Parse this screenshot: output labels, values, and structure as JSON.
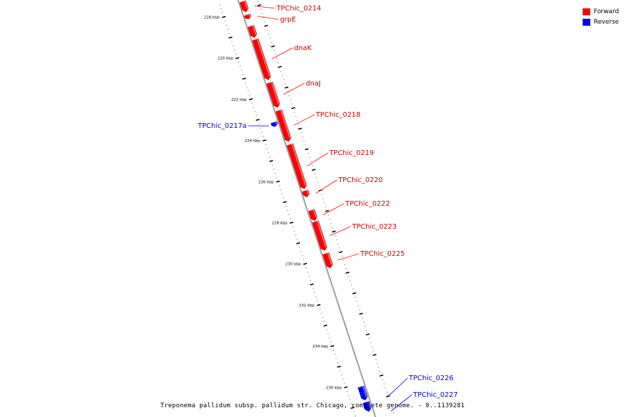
{
  "legend": {
    "forward_label": "Forward",
    "reverse_label": "Reverse",
    "forward_color": "#ff0000",
    "reverse_color": "#0000ff"
  },
  "caption": "Treponema pallidum subsp. pallidum str. Chicago, complete genome. - 0..1139281",
  "diagram": {
    "tick_labels": [
      {
        "kbp": 218,
        "label": "218 kbp"
      },
      {
        "kbp": 220,
        "label": "220 kbp"
      },
      {
        "kbp": 222,
        "label": "222 kbp"
      },
      {
        "kbp": 224,
        "label": "224 kbp"
      },
      {
        "kbp": 226,
        "label": "226 kbp"
      },
      {
        "kbp": 228,
        "label": "228 kbp"
      },
      {
        "kbp": 230,
        "label": "230 kbp"
      },
      {
        "kbp": 232,
        "label": "232 kbp"
      },
      {
        "kbp": 234,
        "label": "234 kbp"
      },
      {
        "kbp": 236,
        "label": "236 kbp"
      }
    ],
    "genes": [
      {
        "name": "TPChic_0214",
        "strand": "forward",
        "start_kbp": 217.6,
        "end_kbp": 218.1
      },
      {
        "name": "grpE",
        "strand": "forward",
        "start_kbp": 218.25,
        "end_kbp": 218.45
      },
      {
        "name": "",
        "strand": "forward",
        "start_kbp": 218.8,
        "end_kbp": 219.35
      },
      {
        "name": "dnaK",
        "strand": "forward",
        "start_kbp": 219.45,
        "end_kbp": 221.4
      },
      {
        "name": "dnaJ",
        "strand": "forward",
        "start_kbp": 221.55,
        "end_kbp": 222.75
      },
      {
        "name": "TPChic_0218",
        "strand": "forward",
        "start_kbp": 222.9,
        "end_kbp": 224.4
      },
      {
        "name": "TPChic_0217a",
        "strand": "reverse",
        "start_kbp": 223.35,
        "end_kbp": 223.55
      },
      {
        "name": "TPChic_0219",
        "strand": "forward",
        "start_kbp": 224.55,
        "end_kbp": 226.7
      },
      {
        "name": "TPChic_0220",
        "strand": "forward",
        "start_kbp": 226.8,
        "end_kbp": 227.1
      },
      {
        "name": "TPChic_0222",
        "strand": "forward",
        "start_kbp": 227.75,
        "end_kbp": 228.25
      },
      {
        "name": "TPChic_0223",
        "strand": "forward",
        "start_kbp": 228.3,
        "end_kbp": 229.7
      },
      {
        "name": "TPChic_0225",
        "strand": "forward",
        "start_kbp": 229.85,
        "end_kbp": 230.55
      },
      {
        "name": "TPChic_0226",
        "strand": "reverse",
        "start_kbp": 236.2,
        "end_kbp": 236.85
      },
      {
        "name": "TPChic_0227",
        "strand": "reverse",
        "start_kbp": 236.95,
        "end_kbp": 237.4
      }
    ]
  }
}
